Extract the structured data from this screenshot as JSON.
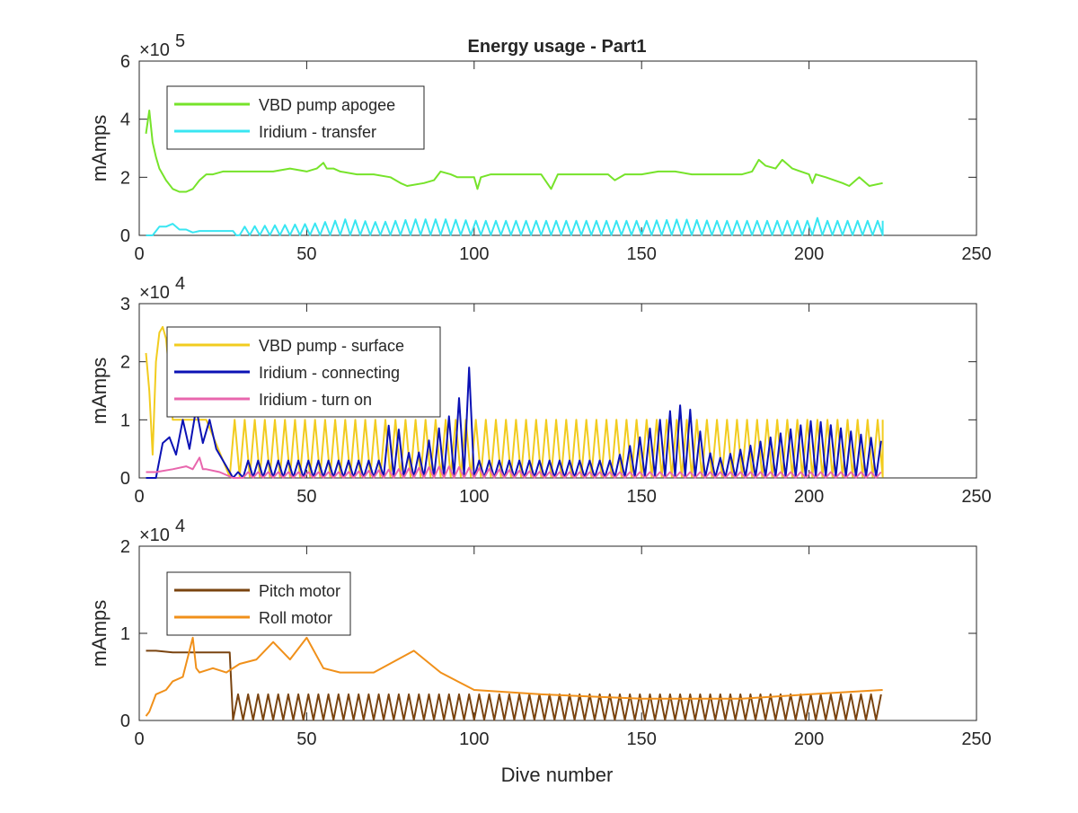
{
  "figure": {
    "title": "Energy usage - Part1",
    "xlabel": "Dive number"
  },
  "chart_data": [
    {
      "type": "line",
      "title": "Energy usage - Part1",
      "xlabel": "",
      "ylabel": "mAmps",
      "y_exponent_label": "×10",
      "y_exponent": "5",
      "xlim": [
        0,
        250
      ],
      "ylim": [
        0,
        6
      ],
      "xticks": [
        "0",
        "50",
        "100",
        "150",
        "200",
        "250"
      ],
      "yticks": [
        "0",
        "2",
        "4",
        "6"
      ],
      "legend_location": "top-left",
      "grid": false,
      "series": [
        {
          "name": "VBD pump apogee",
          "color": "#76e32a",
          "x": [
            2,
            3,
            4,
            5,
            6,
            8,
            10,
            12,
            14,
            16,
            18,
            20,
            22,
            25,
            28,
            30,
            35,
            40,
            45,
            50,
            53,
            55,
            56,
            58,
            60,
            65,
            70,
            75,
            78,
            80,
            85,
            88,
            90,
            93,
            95,
            100,
            101,
            102,
            105,
            110,
            115,
            120,
            123,
            125,
            130,
            135,
            140,
            142,
            145,
            150,
            155,
            160,
            165,
            170,
            175,
            180,
            183,
            185,
            187,
            190,
            192,
            195,
            200,
            201,
            202,
            205,
            210,
            212,
            215,
            218,
            222
          ],
          "y": [
            3.5,
            4.3,
            3.2,
            2.7,
            2.3,
            1.9,
            1.6,
            1.5,
            1.5,
            1.6,
            1.9,
            2.1,
            2.1,
            2.2,
            2.2,
            2.2,
            2.2,
            2.2,
            2.3,
            2.2,
            2.3,
            2.5,
            2.3,
            2.3,
            2.2,
            2.1,
            2.1,
            2.0,
            1.8,
            1.7,
            1.8,
            1.9,
            2.2,
            2.1,
            2.0,
            2.0,
            1.6,
            2.0,
            2.1,
            2.1,
            2.1,
            2.1,
            1.6,
            2.1,
            2.1,
            2.1,
            2.1,
            1.9,
            2.1,
            2.1,
            2.2,
            2.2,
            2.1,
            2.1,
            2.1,
            2.1,
            2.2,
            2.6,
            2.4,
            2.3,
            2.6,
            2.3,
            2.1,
            1.8,
            2.1,
            2.0,
            1.8,
            1.7,
            2.0,
            1.7,
            1.8
          ]
        },
        {
          "name": "Iridium - transfer",
          "color": "#39e6f2",
          "x": [
            2,
            4,
            6,
            8,
            10,
            12,
            14,
            16,
            18,
            20,
            22,
            24,
            26,
            28,
            29,
            30,
            50,
            60,
            70,
            80,
            90,
            100,
            110,
            120,
            130,
            140,
            150,
            160,
            170,
            180,
            190,
            199,
            200,
            201,
            202,
            210,
            220,
            222
          ],
          "y": [
            0,
            0,
            0.3,
            0.3,
            0.4,
            0.2,
            0.2,
            0.1,
            0.15,
            0.15,
            0.15,
            0.15,
            0.15,
            0.15,
            0,
            0.3,
            0.4,
            0.55,
            0.45,
            0.55,
            0.55,
            0.5,
            0.5,
            0.5,
            0.5,
            0.5,
            0.5,
            0.55,
            0.5,
            0.5,
            0.5,
            0.5,
            0.9,
            0.6,
            0.5,
            0.5,
            0.5,
            0.5
          ],
          "periodic_from": 30,
          "period": 3
        }
      ]
    },
    {
      "type": "line",
      "xlabel": "",
      "ylabel": "mAmps",
      "y_exponent_label": "×10",
      "y_exponent": "4",
      "xlim": [
        0,
        250
      ],
      "ylim": [
        0,
        3
      ],
      "xticks": [
        "0",
        "50",
        "100",
        "150",
        "200",
        "250"
      ],
      "yticks": [
        "0",
        "1",
        "2",
        "3"
      ],
      "legend_location": "top-left",
      "grid": false,
      "series": [
        {
          "name": "VBD pump - surface",
          "color": "#f2cc1f",
          "x": [
            2,
            3,
            4,
            5,
            6,
            7,
            8,
            9,
            10,
            20,
            27,
            30,
            60,
            90,
            120,
            150,
            180,
            210,
            222
          ],
          "y": [
            2.15,
            1.5,
            0.4,
            2.0,
            2.5,
            2.6,
            2.4,
            1.8,
            1.0,
            1.0,
            1.0,
            1.0,
            1.0,
            1.0,
            1.0,
            1.0,
            1.0,
            1.0,
            1.0
          ],
          "periodic_from": 27,
          "period": 3
        },
        {
          "name": "Iridium - connecting",
          "color": "#0b12b5",
          "x": [
            2,
            5,
            7,
            9,
            11,
            13,
            15,
            17,
            19,
            21,
            23,
            25,
            28,
            30,
            40,
            50,
            60,
            70,
            74,
            80,
            93,
            97,
            100,
            120,
            140,
            158,
            162,
            170,
            200,
            222
          ],
          "y": [
            0,
            0,
            0.6,
            0.7,
            0.4,
            1.0,
            0.5,
            1.2,
            0.6,
            1.0,
            0.5,
            0.3,
            0.1,
            0.3,
            0.3,
            0.3,
            0.3,
            0.3,
            1.1,
            0.3,
            1.2,
            1.9,
            0.3,
            0.3,
            0.3,
            1.2,
            1.3,
            0.3,
            1.0,
            0.6
          ],
          "periodic_from": 28,
          "period": 3
        },
        {
          "name": "Iridium - turn on",
          "color": "#e866ad",
          "x": [
            2,
            5,
            10,
            14,
            16,
            18,
            19,
            20,
            24,
            28,
            30,
            60,
            90,
            120,
            150,
            180,
            210,
            222
          ],
          "y": [
            0.1,
            0.1,
            0.15,
            0.2,
            0.15,
            0.35,
            0.15,
            0.15,
            0.1,
            0.0,
            0.1,
            0.1,
            0.2,
            0.1,
            0.1,
            0.1,
            0.1,
            0.1
          ],
          "periodic_from": 28,
          "period": 3
        }
      ]
    },
    {
      "type": "line",
      "xlabel": "Dive number",
      "ylabel": "mAmps",
      "y_exponent_label": "×10",
      "y_exponent": "4",
      "xlim": [
        0,
        250
      ],
      "ylim": [
        0,
        2
      ],
      "xticks": [
        "0",
        "50",
        "100",
        "150",
        "200",
        "250"
      ],
      "yticks": [
        "0",
        "1",
        "2"
      ],
      "legend_location": "top-left",
      "grid": false,
      "series": [
        {
          "name": "Pitch motor",
          "color": "#7a4410",
          "x": [
            2,
            5,
            10,
            15,
            20,
            25,
            27,
            28,
            100,
            222
          ],
          "y": [
            0.8,
            0.8,
            0.78,
            0.78,
            0.78,
            0.78,
            0.78,
            0.3,
            0.3,
            0.3
          ],
          "periodic_from": 28,
          "period": 3
        },
        {
          "name": "Roll motor",
          "color": "#f0901a",
          "x": [
            2,
            3,
            5,
            8,
            10,
            13,
            16,
            17,
            18,
            22,
            26,
            30,
            35,
            40,
            45,
            50,
            55,
            60,
            70,
            82,
            90,
            100,
            120,
            150,
            180,
            200,
            222
          ],
          "y": [
            0.05,
            0.1,
            0.3,
            0.35,
            0.45,
            0.5,
            0.95,
            0.6,
            0.55,
            0.6,
            0.55,
            0.65,
            0.7,
            0.9,
            0.7,
            0.95,
            0.6,
            0.55,
            0.55,
            0.8,
            0.55,
            0.35,
            0.3,
            0.25,
            0.25,
            0.3,
            0.35
          ]
        }
      ]
    }
  ]
}
